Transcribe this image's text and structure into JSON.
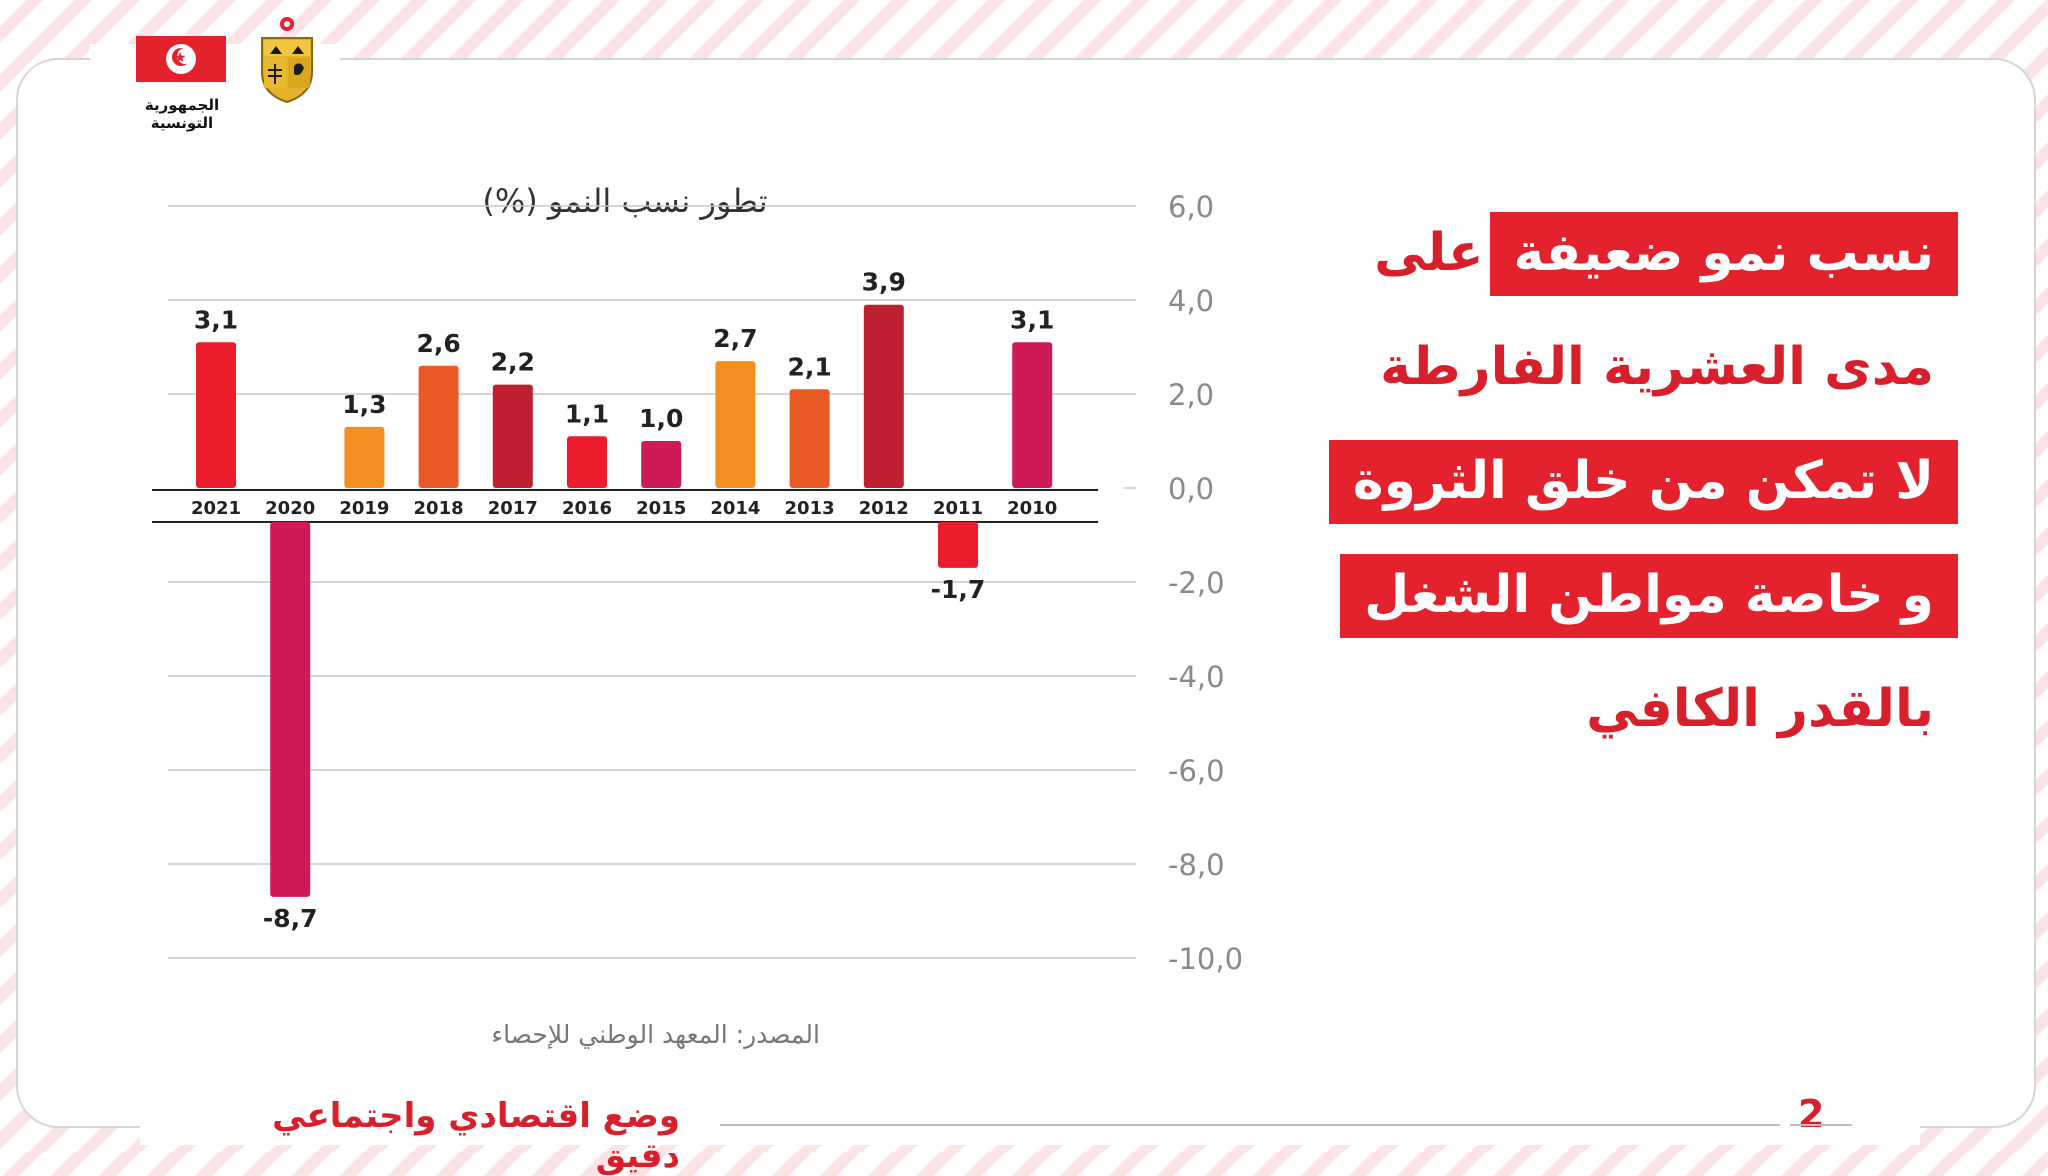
{
  "header": {
    "republic_label": "الجمهورية التونسية",
    "flag_colors": {
      "field": "#e4222e",
      "disc": "#ffffff"
    },
    "emblem_icon": "coat-of-arms-icon"
  },
  "heading": {
    "lines": [
      {
        "text": "نسب نمو ضعيفة",
        "highlight": true
      },
      {
        "text": "على",
        "highlight": false
      },
      {
        "text": "مدى العشرية الفارطة",
        "highlight": false
      },
      {
        "text": "لا تمكن من خلق الثروة",
        "highlight": true
      },
      {
        "text": "و خاصة مواطن الشغل",
        "highlight": true
      },
      {
        "text": "بالقدر الكافي",
        "highlight": false
      }
    ],
    "accent_color": "#e4222e"
  },
  "chart_data": {
    "type": "bar",
    "title": "تطور نسب النمو (%)",
    "categories": [
      "2021",
      "2020",
      "2019",
      "2018",
      "2017",
      "2016",
      "2015",
      "2014",
      "2013",
      "2012",
      "2011",
      "2010"
    ],
    "series": [
      {
        "values": [
          3.1,
          -8.7,
          1.3,
          2.6,
          2.2,
          1.1,
          1.0,
          2.7,
          2.1,
          3.9,
          -1.7,
          3.1
        ]
      }
    ],
    "value_labels": [
      "3,1",
      "-8,7",
      "1,3",
      "2,6",
      "2,2",
      "1,1",
      "1,0",
      "2,7",
      "2,1",
      "3,9",
      "-1,7",
      "3,1"
    ],
    "bar_colors": [
      "#ec1c2c",
      "#cf1a57",
      "#f4901f",
      "#ea5a25",
      "#be2032",
      "#ec1c2c",
      "#cf1a57",
      "#f4901f",
      "#ea5a25",
      "#be2032",
      "#ec1c2c",
      "#cf1a57"
    ],
    "ylim": [
      -10,
      6
    ],
    "yticks": [
      6,
      4,
      2,
      0,
      -2,
      -4,
      -6,
      -8,
      -10
    ],
    "ytick_labels": [
      "6,0",
      "4,0",
      "2,0",
      "0,0",
      "-2,0",
      "-4,0",
      "-6,0",
      "-8,0",
      "-10,0"
    ],
    "grid": true,
    "axis_position": "right"
  },
  "source": "المصدر: المعهد الوطني للإحصاء",
  "footer": {
    "title": "وضع اقتصادي واجتماعي دقيق",
    "page_number": "2"
  }
}
